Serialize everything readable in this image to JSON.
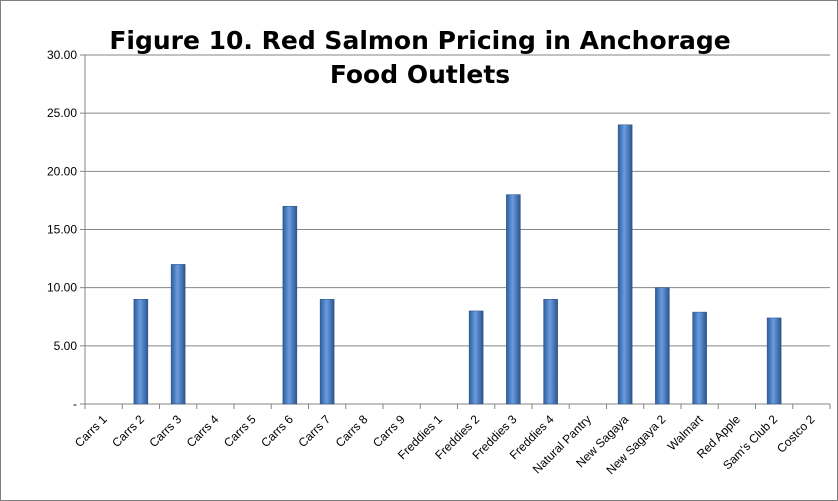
{
  "chart_data": {
    "type": "bar",
    "title": "Figure 10. Red Salmon Pricing in Anchorage Food Outlets",
    "categories": [
      "Carrs 1",
      "Carrs 2",
      "Carrs 3",
      "Carrs 4",
      "Carrs 5",
      "Carrs 6",
      "Carrs 7",
      "Carrs 8",
      "Carrs 9",
      "Freddies 1",
      "Freddies 2",
      "Freddies 3",
      "Freddies 4",
      "Natural Pantry",
      "New Sagaya",
      "New Sagaya 2",
      "Walmart",
      "Red Apple",
      "Sam's Club 2",
      "Costco 2"
    ],
    "values": [
      null,
      9,
      12,
      null,
      null,
      17,
      9,
      null,
      null,
      null,
      8,
      18,
      9,
      null,
      24,
      10,
      7.9,
      null,
      7.4,
      null
    ],
    "color": "#4a7ebb",
    "ylim": [
      0,
      30
    ],
    "yticks": [
      {
        "value": 0,
        "label": "-"
      },
      {
        "value": 5,
        "label": "5.00"
      },
      {
        "value": 10,
        "label": "10.00"
      },
      {
        "value": 15,
        "label": "15.00"
      },
      {
        "value": 20,
        "label": "20.00"
      },
      {
        "value": 25,
        "label": "25.00"
      },
      {
        "value": 30,
        "label": "30.00"
      }
    ],
    "grid": true
  }
}
